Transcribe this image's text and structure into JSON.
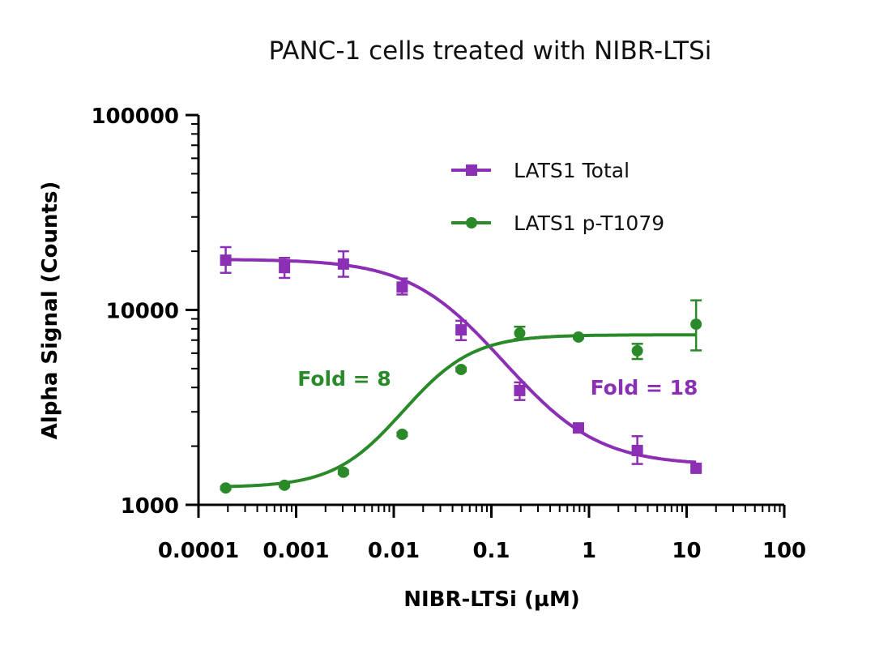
{
  "chart_data": {
    "type": "scatter",
    "title": "PANC-1 cells treated with NIBR-LTSi",
    "xlabel": "NIBR-LTSi (µM)",
    "ylabel": "Alpha Signal (Counts)",
    "xscale": "log",
    "yscale": "log",
    "xlim": [
      0.0001,
      100
    ],
    "ylim": [
      1000,
      100000
    ],
    "xticks": [
      "0.0001",
      "0.001",
      "0.01",
      "0.1",
      "1",
      "10",
      "100"
    ],
    "yticks": [
      "1000",
      "10000",
      "100000"
    ],
    "grid": false,
    "legend_placement": "top-right",
    "x": [
      0.00019,
      0.00076,
      0.00305,
      0.0122,
      0.049,
      0.195,
      0.78,
      3.125,
      12.5
    ],
    "series": [
      {
        "name": "LATS1 Total",
        "color": "#8b2fb5",
        "marker": "square",
        "values": [
          18000,
          16500,
          17200,
          13100,
          7900,
          3860,
          2480,
          1900,
          1540
        ],
        "err_low": [
          15500,
          14600,
          14800,
          12000,
          7000,
          3450,
          2350,
          1620,
          1500
        ],
        "err_high": [
          21000,
          18500,
          20000,
          14500,
          8800,
          4250,
          2600,
          2250,
          1580
        ],
        "fit": {
          "bottom": 1600,
          "top": 18200,
          "ec50": 0.04,
          "hill": -1.0
        },
        "annotation": "Fold = 18"
      },
      {
        "name": "LATS1 p-T1079",
        "color": "#2a8a2a",
        "marker": "circle",
        "values": [
          1220,
          1260,
          1470,
          2300,
          4950,
          7600,
          7260,
          6170,
          8450
        ],
        "err_low": [
          1200,
          1240,
          1440,
          2250,
          4850,
          7100,
          7150,
          5600,
          6200
        ],
        "err_high": [
          1240,
          1280,
          1500,
          2350,
          5050,
          8200,
          7370,
          6700,
          11200
        ],
        "fit": {
          "bottom": 1230,
          "top": 7450,
          "ec50": 0.025,
          "hill": 1.3
        },
        "annotation": "Fold = 8"
      }
    ]
  }
}
